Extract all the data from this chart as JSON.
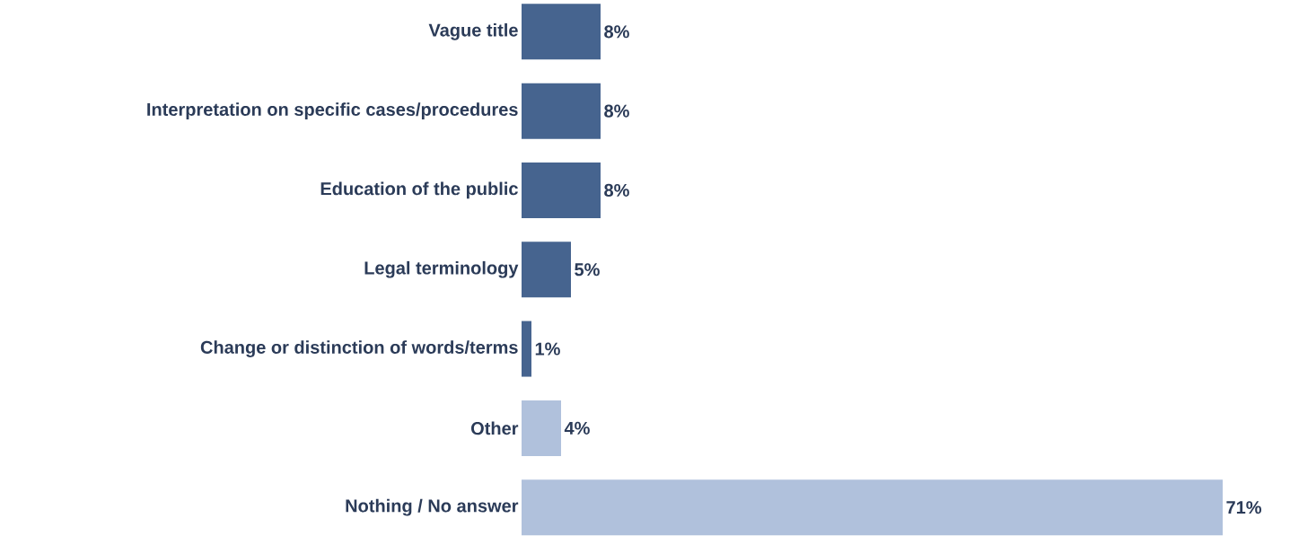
{
  "chart_data": {
    "type": "bar",
    "orientation": "horizontal",
    "categories": [
      "Vague title",
      "Interpretation on specific cases/procedures",
      "Education of the public",
      "Legal terminology",
      "Change or distinction of words/terms",
      "Other",
      "Nothing / No answer"
    ],
    "values": [
      8,
      8,
      8,
      5,
      1,
      4,
      71
    ],
    "value_labels": [
      "8%",
      "8%",
      "8%",
      "5%",
      "1%",
      "4%",
      "71%"
    ],
    "colors": [
      "#46648f",
      "#46648f",
      "#46648f",
      "#46648f",
      "#46648f",
      "#b0c1dc",
      "#b0c1dc"
    ]
  }
}
